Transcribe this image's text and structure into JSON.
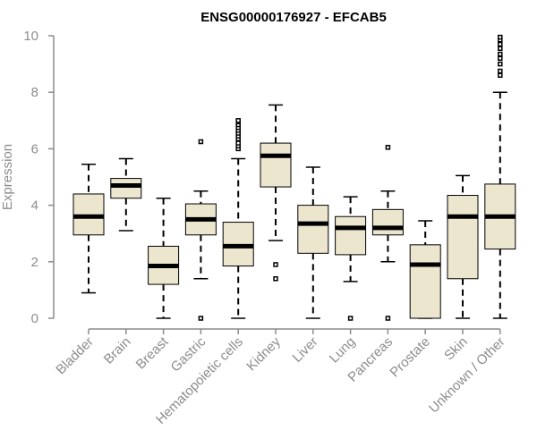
{
  "chart_data": {
    "type": "boxplot",
    "title": "ENSG00000176927 - EFCAB5",
    "ylabel": "Expression",
    "xlabel": "",
    "ylim": [
      0,
      10
    ],
    "yticks": [
      0,
      2,
      4,
      6,
      8,
      10
    ],
    "box_color": "#ede6cf",
    "categories": [
      "Bladder",
      "Brain",
      "Breast",
      "Gastric",
      "Hematopoietic cells",
      "Kidney",
      "Liver",
      "Lung",
      "Pancreas",
      "Prostate",
      "Skin",
      "Unknown / Other"
    ],
    "boxes": [
      {
        "category": "Bladder",
        "whisker_low": 0.9,
        "q1": 2.95,
        "median": 3.6,
        "q3": 4.4,
        "whisker_high": 5.45,
        "outliers": []
      },
      {
        "category": "Brain",
        "whisker_low": 3.1,
        "q1": 4.25,
        "median": 4.7,
        "q3": 4.95,
        "whisker_high": 5.65,
        "outliers": []
      },
      {
        "category": "Breast",
        "whisker_low": 0.0,
        "q1": 1.2,
        "median": 1.85,
        "q3": 2.55,
        "whisker_high": 4.25,
        "outliers": []
      },
      {
        "category": "Gastric",
        "whisker_low": 1.4,
        "q1": 2.95,
        "median": 3.5,
        "q3": 4.05,
        "whisker_high": 4.5,
        "outliers": [
          0.0,
          6.25
        ]
      },
      {
        "category": "Hematopoietic cells",
        "whisker_low": 0.0,
        "q1": 1.85,
        "median": 2.55,
        "q3": 3.4,
        "whisker_high": 5.65,
        "outliers": [
          6.0,
          6.1,
          6.2,
          6.35,
          6.45,
          6.55,
          6.65,
          6.75,
          6.85,
          6.95,
          7.0
        ]
      },
      {
        "category": "Kidney",
        "whisker_low": 2.75,
        "q1": 4.65,
        "median": 5.75,
        "q3": 6.2,
        "whisker_high": 7.55,
        "outliers": [
          1.4,
          1.9
        ]
      },
      {
        "category": "Liver",
        "whisker_low": 0.0,
        "q1": 2.3,
        "median": 3.35,
        "q3": 4.0,
        "whisker_high": 5.35,
        "outliers": []
      },
      {
        "category": "Lung",
        "whisker_low": 1.3,
        "q1": 2.25,
        "median": 3.2,
        "q3": 3.6,
        "whisker_high": 4.3,
        "outliers": [
          0.0
        ]
      },
      {
        "category": "Pancreas",
        "whisker_low": 2.0,
        "q1": 2.95,
        "median": 3.2,
        "q3": 3.85,
        "whisker_high": 4.5,
        "outliers": [
          0.0,
          6.05
        ]
      },
      {
        "category": "Prostate",
        "whisker_low": 0.0,
        "q1": 0.0,
        "median": 1.9,
        "q3": 2.6,
        "whisker_high": 3.45,
        "outliers": []
      },
      {
        "category": "Skin",
        "whisker_low": 0.0,
        "q1": 1.4,
        "median": 3.6,
        "q3": 4.35,
        "whisker_high": 5.05,
        "outliers": []
      },
      {
        "category": "Unknown / Other",
        "whisker_low": 0.0,
        "q1": 2.45,
        "median": 3.6,
        "q3": 4.75,
        "whisker_high": 8.0,
        "outliers": [
          8.6,
          8.75,
          9.0,
          9.2,
          9.35,
          9.55,
          9.7,
          9.85,
          9.95
        ]
      }
    ]
  }
}
